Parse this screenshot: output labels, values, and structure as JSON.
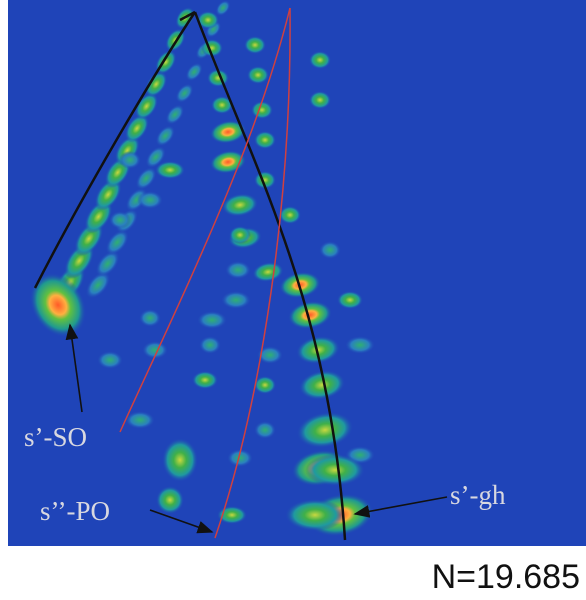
{
  "figure": {
    "labels": [
      "s’-SO",
      "s’’-PO",
      "s’-gh"
    ],
    "caption": "N=19.685"
  }
}
